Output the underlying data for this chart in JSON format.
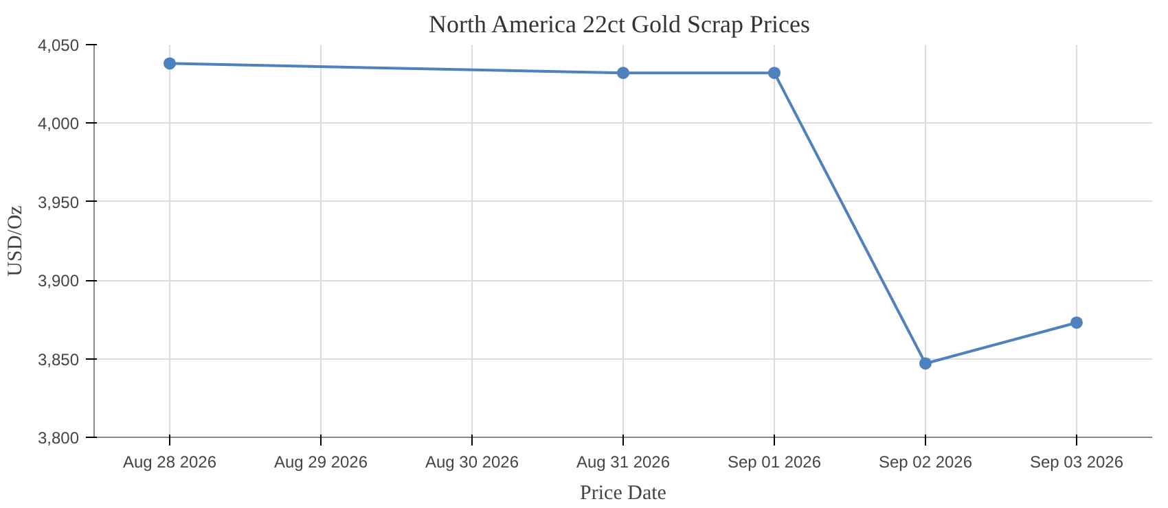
{
  "chart_data": {
    "type": "line",
    "title": "North America 22ct Gold Scrap  Prices",
    "xlabel": "Price Date",
    "ylabel": "USD/Oz",
    "x": [
      "2026-08-28",
      "2026-08-31",
      "2026-09-01",
      "2026-09-02",
      "2026-09-03"
    ],
    "series": [
      {
        "color": "#4f81bc",
        "values": [
          4038,
          4032,
          4032,
          3847,
          3873
        ]
      }
    ],
    "xlim": [
      "2026-08-27T12:00",
      "2026-09-03T12:00"
    ],
    "xticks": [
      {
        "value": "2026-08-28",
        "label": "Aug 28 2026"
      },
      {
        "value": "2026-08-29",
        "label": "Aug 29 2026"
      },
      {
        "value": "2026-08-30",
        "label": "Aug 30 2026"
      },
      {
        "value": "2026-08-31",
        "label": "Aug 31 2026"
      },
      {
        "value": "2026-09-01",
        "label": "Sep 01 2026"
      },
      {
        "value": "2026-09-02",
        "label": "Sep 02 2026"
      },
      {
        "value": "2026-09-03",
        "label": "Sep 03 2026"
      }
    ],
    "ylim": [
      3800,
      4050
    ],
    "yticks": [
      {
        "value": 3800,
        "label": "3,800"
      },
      {
        "value": 3850,
        "label": "3,850"
      },
      {
        "value": 3900,
        "label": "3,900"
      },
      {
        "value": 3950,
        "label": "3,950"
      },
      {
        "value": 4000,
        "label": "4,000"
      },
      {
        "value": 4050,
        "label": "4,050"
      }
    ],
    "grid": true,
    "marker": "circle",
    "line_style": "solid"
  }
}
